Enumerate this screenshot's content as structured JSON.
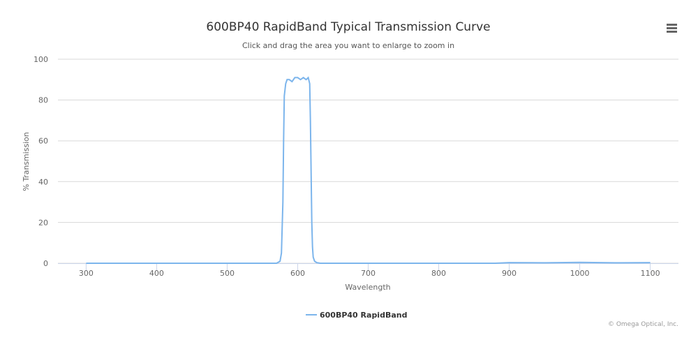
{
  "chart_data": {
    "type": "line",
    "title": "600BP40 RapidBand Typical Transmission Curve",
    "subtitle": "Click and drag the area you want to enlarge to zoom in",
    "x_label": "Wavelength",
    "y_label": "% Transmission",
    "credits": "© Omega Optical, Inc.",
    "xlim": [
      260,
      1140
    ],
    "xticks": [
      300,
      400,
      500,
      600,
      700,
      800,
      900,
      1000,
      1100
    ],
    "ylim": [
      0,
      100
    ],
    "yticks": [
      0,
      20,
      40,
      60,
      80,
      100
    ],
    "grid": true,
    "legend": "bottom",
    "series": [
      {
        "name": "600BP40 RapidBand",
        "color": "#7cb5ec",
        "x": [
          300,
          570,
          575,
          577,
          579,
          580,
          581,
          583,
          585,
          588,
          592,
          596,
          600,
          604,
          608,
          612,
          615,
          617,
          618,
          619,
          620,
          621,
          622,
          624,
          627,
          632,
          880,
          900,
          950,
          1000,
          1050,
          1100
        ],
        "values": [
          0,
          0,
          1,
          5,
          30,
          60,
          82,
          88,
          90,
          90,
          89,
          91,
          91,
          90,
          91,
          90,
          91,
          88,
          70,
          45,
          20,
          8,
          3,
          1,
          0.3,
          0,
          0,
          0.3,
          0.2,
          0.4,
          0.2,
          0.3
        ]
      }
    ]
  }
}
